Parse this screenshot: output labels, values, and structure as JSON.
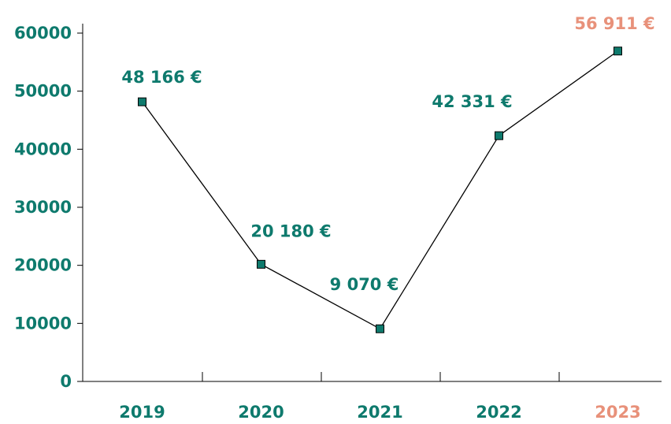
{
  "chart_data": {
    "type": "line",
    "categories": [
      "2019",
      "2020",
      "2021",
      "2022",
      "2023"
    ],
    "values": [
      48166,
      20180,
      9070,
      42331,
      56911
    ],
    "value_labels": [
      "48 166 €",
      "20 180 €",
      "9 070 €",
      "42 331 €",
      "56 911 €"
    ],
    "color": "#0e7a6d",
    "label_colors": [
      "#0e7a6d",
      "#0e7a6d",
      "#0e7a6d",
      "#0e7a6d",
      "#e8917a"
    ],
    "line_color": "#000000",
    "ylim": [
      0,
      60000
    ],
    "yticks": [
      0,
      10000,
      20000,
      30000,
      40000,
      50000,
      60000
    ],
    "grid": false
  }
}
